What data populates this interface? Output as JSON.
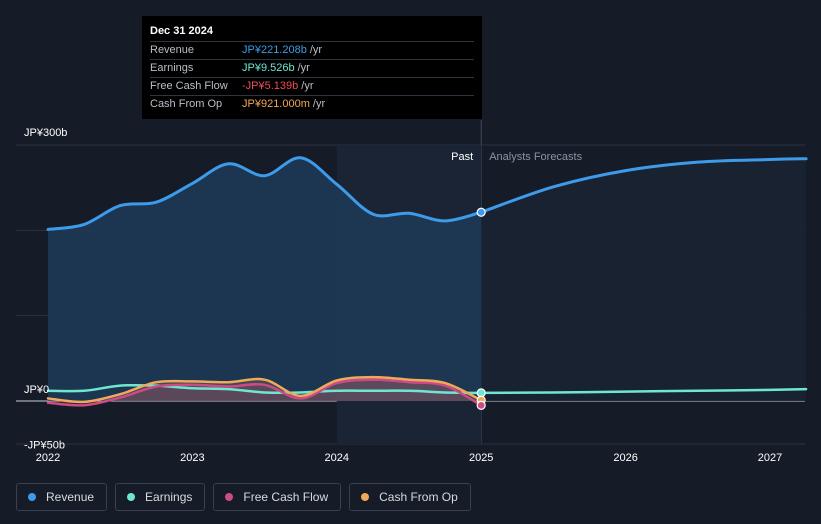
{
  "tooltip": {
    "date": "Dec 31 2024",
    "rows": [
      {
        "label": "Revenue",
        "value": "JP¥221.208b",
        "unit": "/yr",
        "color": "#3d9be9"
      },
      {
        "label": "Earnings",
        "value": "JP¥9.526b",
        "unit": "/yr",
        "color": "#6ee7d2"
      },
      {
        "label": "Free Cash Flow",
        "value": "-JP¥5.139b",
        "unit": "/yr",
        "color": "#ef4a5a"
      },
      {
        "label": "Cash From Op",
        "value": "JP¥921.000m",
        "unit": "/yr",
        "color": "#f0a95a"
      }
    ]
  },
  "chart_data": {
    "type": "line",
    "y_tick_labels": [
      "JP¥300b",
      "JP¥0",
      "-JP¥50b"
    ],
    "ylim": [
      -50,
      300
    ],
    "xlim": [
      2022,
      2027.25
    ],
    "x_tick_labels": [
      "2022",
      "2023",
      "2024",
      "2025",
      "2026",
      "2027"
    ],
    "x_ticks": [
      2022,
      2023,
      2024,
      2025,
      2026,
      2027
    ],
    "region_labels": {
      "past": "Past",
      "forecast": "Analysts Forecasts"
    },
    "divider_x": 2025.0,
    "highlight_x": [
      2024.0,
      2025.0
    ],
    "grid": true,
    "legend_position": "bottom-left",
    "series": [
      {
        "name": "Revenue",
        "color": "#3d9be9",
        "past": [
          [
            2022.0,
            201
          ],
          [
            2022.25,
            207
          ],
          [
            2022.5,
            229
          ],
          [
            2022.75,
            233
          ],
          [
            2023.0,
            255
          ],
          [
            2023.25,
            278
          ],
          [
            2023.5,
            264
          ],
          [
            2023.75,
            285
          ],
          [
            2024.0,
            254
          ],
          [
            2024.25,
            219
          ],
          [
            2024.5,
            220
          ],
          [
            2024.75,
            211
          ],
          [
            2025.0,
            221.208
          ]
        ],
        "forecast": [
          [
            2025.0,
            221.208
          ],
          [
            2025.5,
            251
          ],
          [
            2026.0,
            270
          ],
          [
            2026.5,
            280
          ],
          [
            2027.0,
            283
          ],
          [
            2027.25,
            284
          ]
        ]
      },
      {
        "name": "Earnings",
        "color": "#6ee7d2",
        "past": [
          [
            2022.0,
            12
          ],
          [
            2022.25,
            12
          ],
          [
            2022.5,
            18
          ],
          [
            2022.75,
            18
          ],
          [
            2023.0,
            15
          ],
          [
            2023.25,
            14
          ],
          [
            2023.5,
            10
          ],
          [
            2023.75,
            10
          ],
          [
            2024.0,
            12
          ],
          [
            2024.25,
            12
          ],
          [
            2024.5,
            12
          ],
          [
            2024.75,
            10
          ],
          [
            2025.0,
            9.526
          ]
        ],
        "forecast": [
          [
            2025.0,
            9.526
          ],
          [
            2025.5,
            10
          ],
          [
            2026.0,
            11
          ],
          [
            2026.5,
            12
          ],
          [
            2027.0,
            13
          ],
          [
            2027.25,
            14
          ]
        ]
      },
      {
        "name": "Free Cash Flow",
        "color": "#cc4a86",
        "past": [
          [
            2022.0,
            -2
          ],
          [
            2022.25,
            -5
          ],
          [
            2022.5,
            4
          ],
          [
            2022.75,
            17
          ],
          [
            2023.0,
            19
          ],
          [
            2023.25,
            17
          ],
          [
            2023.5,
            19
          ],
          [
            2023.75,
            3
          ],
          [
            2024.0,
            21
          ],
          [
            2024.25,
            25
          ],
          [
            2024.5,
            22
          ],
          [
            2024.75,
            18
          ],
          [
            2025.0,
            -5.139
          ]
        ]
      },
      {
        "name": "Cash From Op",
        "color": "#f0a95a",
        "past": [
          [
            2022.0,
            3
          ],
          [
            2022.25,
            -1
          ],
          [
            2022.5,
            8
          ],
          [
            2022.75,
            22
          ],
          [
            2023.0,
            23
          ],
          [
            2023.25,
            22
          ],
          [
            2023.5,
            25
          ],
          [
            2023.75,
            6
          ],
          [
            2024.0,
            24
          ],
          [
            2024.25,
            28
          ],
          [
            2024.5,
            25
          ],
          [
            2024.75,
            21
          ],
          [
            2025.0,
            0.921
          ]
        ]
      }
    ]
  },
  "legend": [
    {
      "label": "Revenue",
      "color": "#3d9be9"
    },
    {
      "label": "Earnings",
      "color": "#6ee7d2"
    },
    {
      "label": "Free Cash Flow",
      "color": "#cc4a86"
    },
    {
      "label": "Cash From Op",
      "color": "#f0a95a"
    }
  ]
}
